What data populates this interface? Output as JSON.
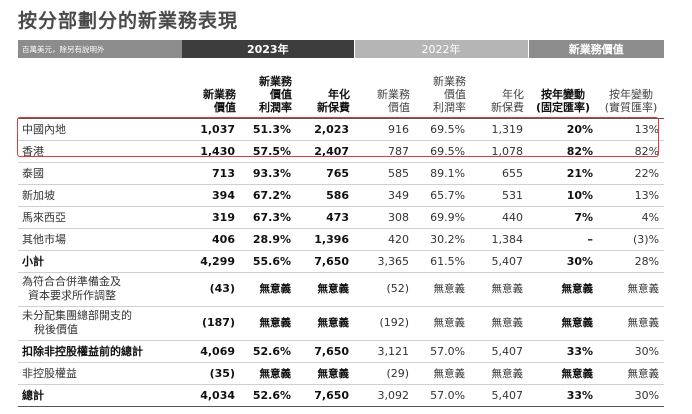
{
  "title": "按分部劃分的新業務表現",
  "header": {
    "unit_note": "百萬美元，除另有說明外",
    "group_2023": "2023年",
    "group_2022": "2022年",
    "group_nbv": "新業務價值",
    "cols": [
      [
        "新業務",
        "價值"
      ],
      [
        "新業務",
        "價值",
        "利潤率"
      ],
      [
        "年化",
        "新保費"
      ],
      [
        "新業務",
        "價值"
      ],
      [
        "新業務",
        "價值",
        "利潤率"
      ],
      [
        "年化",
        "新保費"
      ],
      [
        "按年變動",
        "(固定匯率)"
      ],
      [
        "按年變動",
        "(實質匯率)"
      ]
    ]
  },
  "rows": [
    {
      "label": [
        "中國內地"
      ],
      "v": [
        "1,037",
        "51.3%",
        "2,023",
        "916",
        "69.5%",
        "1,319",
        "20%",
        "13%"
      ]
    },
    {
      "label": [
        "香港"
      ],
      "v": [
        "1,430",
        "57.5%",
        "2,407",
        "787",
        "69.5%",
        "1,078",
        "82%",
        "82%"
      ]
    },
    {
      "label": [
        "泰國"
      ],
      "v": [
        "713",
        "93.3%",
        "765",
        "585",
        "89.1%",
        "655",
        "21%",
        "22%"
      ]
    },
    {
      "label": [
        "新加坡"
      ],
      "v": [
        "394",
        "67.2%",
        "586",
        "349",
        "65.7%",
        "531",
        "10%",
        "13%"
      ]
    },
    {
      "label": [
        "馬來西亞"
      ],
      "v": [
        "319",
        "67.3%",
        "473",
        "308",
        "69.9%",
        "440",
        "7%",
        "4%"
      ]
    },
    {
      "label": [
        "其他市場"
      ],
      "v": [
        "406",
        "28.9%",
        "1,396",
        "420",
        "30.2%",
        "1,384",
        "–",
        "(3)%"
      ]
    },
    {
      "label": [
        "小計"
      ],
      "v": [
        "4,299",
        "55.6%",
        "7,650",
        "3,365",
        "61.5%",
        "5,407",
        "30%",
        "28%"
      ]
    },
    {
      "label": [
        "為符合合併準備金及",
        "資本要求所作調整"
      ],
      "v": [
        "(43)",
        "無意義",
        "無意義",
        "(52)",
        "無意義",
        "無意義",
        "無意義",
        "無意義"
      ]
    },
    {
      "label": [
        "未分配集團總部開支的",
        "稅後價值"
      ],
      "v": [
        "(187)",
        "無意義",
        "無意義",
        "(192)",
        "無意義",
        "無意義",
        "無意義",
        "無意義"
      ]
    },
    {
      "label": [
        "扣除非控股權益前的總計"
      ],
      "v": [
        "4,069",
        "52.6%",
        "7,650",
        "3,121",
        "57.0%",
        "5,407",
        "33%",
        "30%"
      ]
    },
    {
      "label": [
        "非控股權益"
      ],
      "v": [
        "(35)",
        "無意義",
        "無意義",
        "(29)",
        "無意義",
        "無意義",
        "無意義",
        "無意義"
      ]
    },
    {
      "label": [
        "總計"
      ],
      "v": [
        "4,034",
        "52.6%",
        "7,650",
        "3,092",
        "57.0%",
        "5,407",
        "33%",
        "30%"
      ]
    }
  ],
  "colors": {
    "dark": "#3d3d3d",
    "mid": "#8c8c8c",
    "light": "#b5b5b5",
    "highlight": "#e53935"
  }
}
